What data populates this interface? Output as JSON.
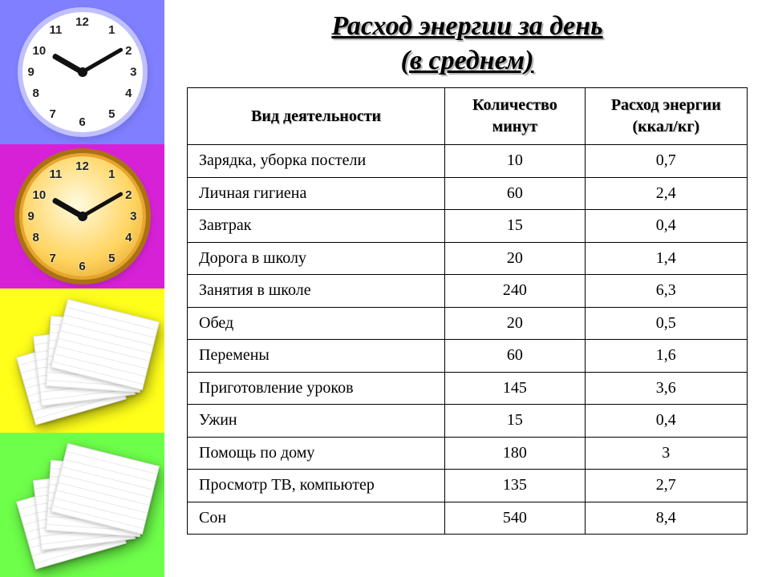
{
  "title": {
    "line1": "Расход энергии за день",
    "line2": "(в среднем)",
    "fontsize": 34,
    "color": "#000000",
    "shadow_color": "#b0b0b0"
  },
  "sidebar": {
    "tiles": [
      {
        "color": "#7f7fff",
        "motif": "clock"
      },
      {
        "color": "#d621d6",
        "motif": "clock"
      },
      {
        "color": "#ffff1a",
        "motif": "papers"
      },
      {
        "color": "#6eff4a",
        "motif": "papers"
      }
    ],
    "clock_blue": {
      "hour_angle": 300,
      "minute_angle": 60
    },
    "clock_gold": {
      "hour_angle": 300,
      "minute_angle": 60
    }
  },
  "table": {
    "type": "table",
    "background_color": "#ffffff",
    "border_color": "#000000",
    "header_fontsize": 20,
    "body_fontsize": 20,
    "columns": [
      {
        "label": "Вид деятельности",
        "width_pct": 46,
        "align": "left"
      },
      {
        "label_line1": "Количество",
        "label_line2": "минут",
        "width_pct": 25,
        "align": "center"
      },
      {
        "label_line1": "Расход энергии",
        "label_line2": "(ккал/кг)",
        "width_pct": 29,
        "align": "center"
      }
    ],
    "rows": [
      {
        "activity": "Зарядка, уборка постели",
        "minutes": "10",
        "energy": "0,7"
      },
      {
        "activity": "Личная гигиена",
        "minutes": "60",
        "energy": "2,4"
      },
      {
        "activity": "Завтрак",
        "minutes": "15",
        "energy": "0,4"
      },
      {
        "activity": "Дорога в школу",
        "minutes": "20",
        "energy": "1,4"
      },
      {
        "activity": "Занятия в школе",
        "minutes": "240",
        "energy": "6,3"
      },
      {
        "activity": "Обед",
        "minutes": "20",
        "energy": "0,5"
      },
      {
        "activity": "Перемены",
        "minutes": "60",
        "energy": "1,6"
      },
      {
        "activity": "Приготовление уроков",
        "minutes": "145",
        "energy": "3,6"
      },
      {
        "activity": "Ужин",
        "minutes": "15",
        "energy": "0,4"
      },
      {
        "activity": "Помощь по дому",
        "minutes": "180",
        "energy": "3"
      },
      {
        "activity": "Просмотр ТВ, компьютер",
        "minutes": "135",
        "energy": "2,7"
      },
      {
        "activity": "Сон",
        "minutes": "540",
        "energy": "8,4"
      }
    ]
  }
}
